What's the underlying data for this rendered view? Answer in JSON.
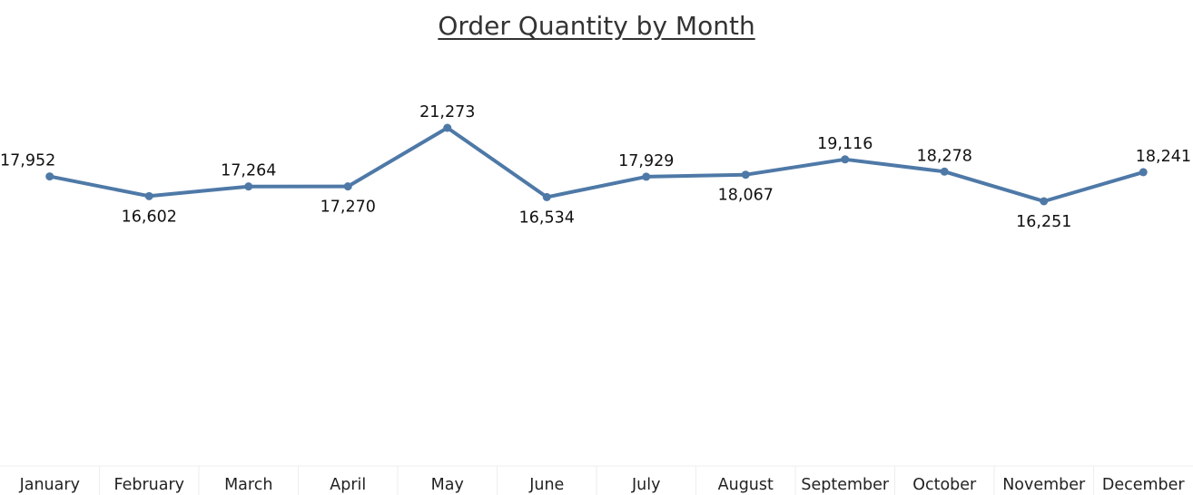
{
  "chart_data": {
    "type": "line",
    "title": "Order Quantity by Month",
    "xlabel": "",
    "ylabel": "",
    "categories": [
      "January",
      "February",
      "March",
      "April",
      "May",
      "June",
      "July",
      "August",
      "September",
      "October",
      "November",
      "December"
    ],
    "series": [
      {
        "values": [
          17952,
          16602,
          17264,
          17270,
          21273,
          16534,
          17929,
          18067,
          19116,
          18278,
          16251,
          18241
        ],
        "labels": [
          "17,952",
          "16,602",
          "17,264",
          "17,270",
          "21,273",
          "16,534",
          "17,929",
          "18,067",
          "19,116",
          "18,278",
          "16,251",
          "18,241"
        ],
        "label_positions": [
          "above",
          "below",
          "above",
          "below",
          "above",
          "below",
          "above",
          "below",
          "above",
          "above",
          "below",
          "above"
        ],
        "color": "#4e79a7"
      }
    ],
    "grid": false,
    "legend": "none",
    "ylim": [
      0,
      23500
    ]
  }
}
